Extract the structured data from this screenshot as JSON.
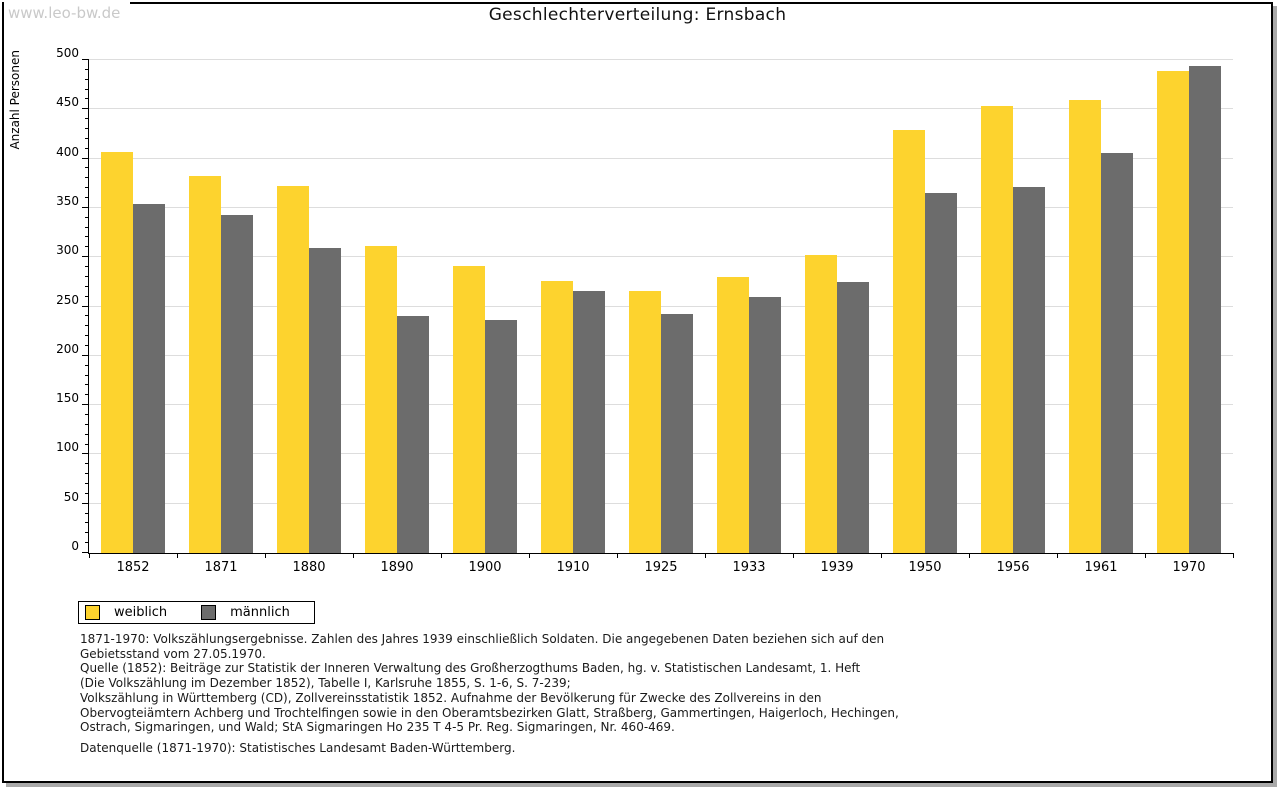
{
  "watermark": "www.leo-bw.de",
  "title": "Geschlechterverteilung: Ernsbach",
  "chart_data": {
    "type": "bar",
    "title": "Geschlechterverteilung: Ernsbach",
    "xlabel": "",
    "ylabel": "Anzahl Personen",
    "ylim": [
      0,
      500
    ],
    "ytick_step": 50,
    "minor_tick_step": 10,
    "grid": true,
    "legend_position": "bottom-left",
    "categories": [
      "1852",
      "1871",
      "1880",
      "1890",
      "1900",
      "1910",
      "1925",
      "1933",
      "1939",
      "1950",
      "1956",
      "1961",
      "1970"
    ],
    "series": [
      {
        "name": "weiblich",
        "color": "#FDD32E",
        "values": [
          407,
          382,
          372,
          311,
          291,
          276,
          266,
          280,
          302,
          429,
          453,
          459,
          489
        ]
      },
      {
        "name": "männlich",
        "color": "#6C6C6C",
        "values": [
          354,
          343,
          309,
          240,
          236,
          266,
          242,
          260,
          275,
          365,
          371,
          406,
          494
        ]
      }
    ]
  },
  "legend": {
    "items": [
      {
        "label": "weiblich",
        "color": "#FDD32E"
      },
      {
        "label": "männlich",
        "color": "#6C6C6C"
      }
    ]
  },
  "footnotes": [
    "1871-1970: Volkszählungsergebnisse. Zahlen des Jahres 1939 einschließlich Soldaten. Die angegebenen Daten beziehen sich auf den",
    "Gebietsstand vom 27.05.1970.",
    "Quelle (1852): Beiträge zur Statistik der Inneren Verwaltung des Großherzogthums Baden, hg. v. Statistischen Landesamt, 1. Heft",
    "(Die Volkszählung im Dezember 1852), Tabelle I, Karlsruhe 1855, S. 1-6, S. 7-239;",
    "Volkszählung in Württemberg (CD), Zollvereinsstatistik 1852. Aufnahme der Bevölkerung für Zwecke des Zollvereins in den",
    "Obervogteiämtern Achberg und Trochtelfingen sowie in den Oberamtsbezirken Glatt, Straßberg, Gammertingen, Haigerloch, Hechingen,",
    "Ostrach, Sigmaringen, und Wald; StA Sigmaringen Ho 235 T 4-5 Pr. Reg. Sigmaringen, Nr. 460-469."
  ],
  "datasource": "Datenquelle (1871-1970): Statistisches Landesamt Baden-Württemberg.",
  "colors": {
    "gridline": "#dddddd",
    "axis": "#000000",
    "watermark": "#c9c9c9",
    "shadow": "#a9a9a9"
  }
}
